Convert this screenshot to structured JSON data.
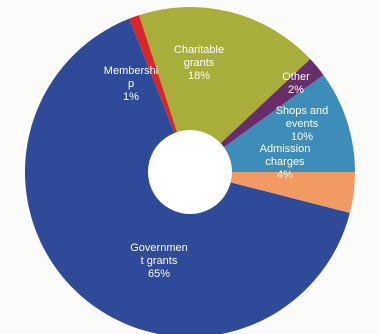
{
  "chart_data": {
    "type": "pie",
    "donut": true,
    "title": "",
    "slices": [
      {
        "label": "Government grants",
        "label_lines": [
          "Governmen",
          "t grants",
          "65%"
        ],
        "value": 65,
        "color": "#2f4a99"
      },
      {
        "label": "Membership",
        "label_lines": [
          "Membershi",
          "p",
          "1%"
        ],
        "value": 1,
        "color": "#d9262b"
      },
      {
        "label": "Charitable grants",
        "label_lines": [
          "Charitable",
          "grants",
          "18%"
        ],
        "value": 18,
        "color": "#a9ad3a"
      },
      {
        "label": "Other",
        "label_lines": [
          "Other",
          "2%"
        ],
        "value": 2,
        "color": "#6a2d6b"
      },
      {
        "label": "Shops and events",
        "label_lines": [
          "Shops and",
          "events",
          "10%"
        ],
        "value": 10,
        "color": "#3e8cba"
      },
      {
        "label": "Admission charges",
        "label_lines": [
          "Admission",
          "charges",
          "4%"
        ],
        "value": 4,
        "color": "#f29a63"
      }
    ]
  }
}
